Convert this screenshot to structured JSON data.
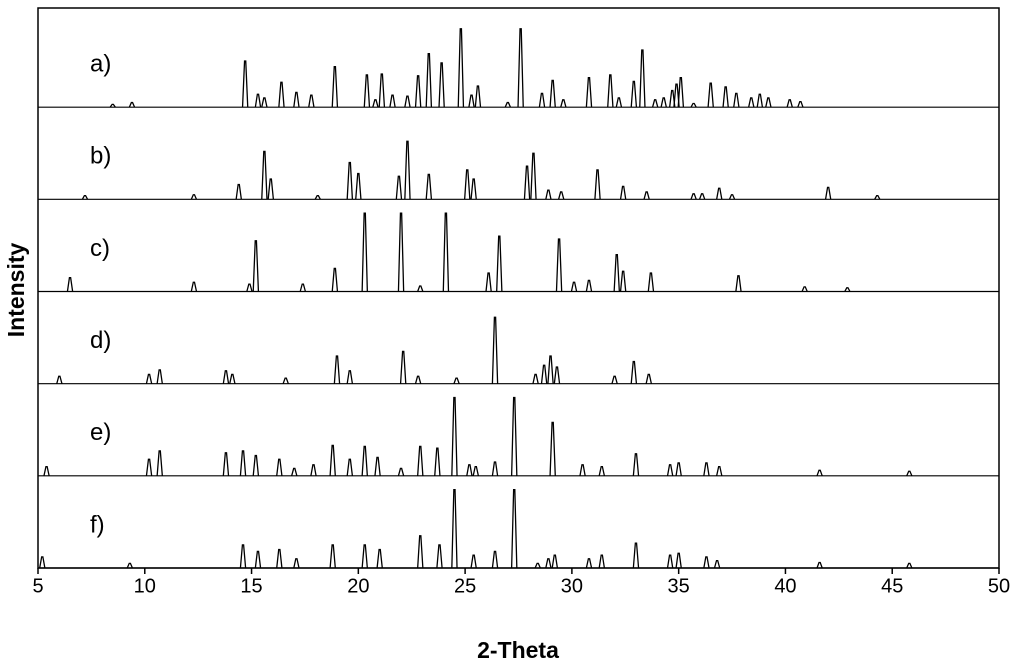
{
  "chart_data": {
    "type": "line",
    "xlabel": "2-Theta",
    "ylabel": "Intensity",
    "xlim": [
      5,
      50
    ],
    "xticks": [
      5,
      10,
      15,
      20,
      25,
      30,
      35,
      40,
      45,
      50
    ],
    "ylim": [
      0,
      100
    ],
    "series": [
      {
        "name": "a)",
        "color": "#000000",
        "x": [
          8.5,
          9.4,
          14.7,
          15.3,
          15.6,
          16.4,
          17.1,
          17.8,
          18.9,
          20.4,
          20.8,
          21.1,
          21.6,
          22.3,
          22.8,
          23.3,
          23.9,
          24.8,
          25.3,
          25.6,
          27.0,
          27.6,
          28.6,
          29.1,
          29.6,
          30.8,
          31.8,
          32.2,
          32.9,
          33.3,
          33.9,
          34.3,
          34.7,
          34.9,
          35.1,
          35.7,
          36.5,
          37.2,
          37.7,
          38.4,
          38.8,
          39.2,
          40.2,
          40.7
        ],
        "values": [
          3,
          5,
          50,
          14,
          10,
          27,
          16,
          13,
          44,
          35,
          8,
          36,
          13,
          12,
          34,
          58,
          48,
          85,
          13,
          23,
          5,
          85,
          15,
          29,
          8,
          32,
          35,
          10,
          28,
          62,
          8,
          10,
          18,
          25,
          32,
          4,
          26,
          22,
          15,
          10,
          14,
          10,
          8,
          6
        ]
      },
      {
        "name": "b)",
        "color": "#000000",
        "x": [
          7.2,
          12.3,
          14.4,
          15.6,
          15.9,
          18.1,
          19.6,
          20.0,
          21.9,
          22.3,
          23.3,
          25.1,
          25.4,
          27.9,
          28.2,
          28.9,
          29.5,
          31.2,
          32.4,
          33.5,
          35.7,
          36.1,
          36.9,
          37.5,
          42.0,
          44.3
        ],
        "values": [
          4,
          5,
          16,
          52,
          22,
          4,
          40,
          28,
          25,
          63,
          27,
          32,
          22,
          36,
          50,
          10,
          8,
          32,
          14,
          8,
          6,
          6,
          12,
          5,
          13,
          4
        ]
      },
      {
        "name": "c)",
        "color": "#000000",
        "x": [
          6.5,
          12.3,
          14.9,
          15.2,
          17.4,
          18.9,
          20.3,
          22.0,
          22.9,
          24.1,
          26.1,
          26.6,
          29.4,
          30.1,
          30.8,
          32.1,
          32.4,
          33.7,
          37.8,
          40.9,
          42.9
        ],
        "values": [
          15,
          10,
          8,
          55,
          8,
          25,
          85,
          85,
          6,
          85,
          20,
          60,
          57,
          10,
          12,
          40,
          22,
          20,
          17,
          5,
          4
        ]
      },
      {
        "name": "d)",
        "color": "#000000",
        "x": [
          6.0,
          10.2,
          10.7,
          13.8,
          14.1,
          16.6,
          19.0,
          19.6,
          22.1,
          22.8,
          24.6,
          26.4,
          28.3,
          28.7,
          29.0,
          29.3,
          32.0,
          32.9,
          33.6
        ],
        "values": [
          8,
          10,
          15,
          14,
          10,
          6,
          30,
          14,
          35,
          8,
          6,
          72,
          10,
          20,
          30,
          18,
          8,
          24,
          10
        ]
      },
      {
        "name": "e)",
        "color": "#000000",
        "x": [
          5.4,
          10.2,
          10.7,
          13.8,
          14.6,
          15.2,
          16.3,
          17.0,
          17.9,
          18.8,
          19.6,
          20.3,
          20.9,
          22.0,
          22.9,
          23.7,
          24.5,
          25.2,
          25.5,
          26.4,
          27.3,
          29.1,
          30.5,
          31.4,
          33.0,
          34.6,
          35.0,
          36.3,
          36.9,
          41.6,
          45.8
        ],
        "values": [
          10,
          18,
          27,
          25,
          27,
          22,
          18,
          8,
          12,
          33,
          18,
          32,
          20,
          8,
          32,
          30,
          85,
          12,
          10,
          15,
          85,
          58,
          12,
          10,
          24,
          12,
          14,
          14,
          10,
          6,
          5
        ]
      },
      {
        "name": "f)",
        "color": "#000000",
        "x": [
          5.2,
          9.3,
          14.6,
          15.3,
          16.3,
          17.1,
          18.8,
          20.3,
          21.0,
          22.9,
          23.8,
          24.5,
          25.4,
          26.4,
          27.3,
          28.4,
          28.9,
          29.2,
          30.8,
          31.4,
          33.0,
          34.6,
          35.0,
          36.3,
          36.8,
          41.6,
          45.8
        ],
        "values": [
          12,
          5,
          25,
          18,
          20,
          10,
          25,
          25,
          20,
          35,
          25,
          85,
          14,
          18,
          85,
          5,
          10,
          14,
          10,
          14,
          27,
          14,
          16,
          12,
          8,
          6,
          5
        ]
      }
    ]
  }
}
